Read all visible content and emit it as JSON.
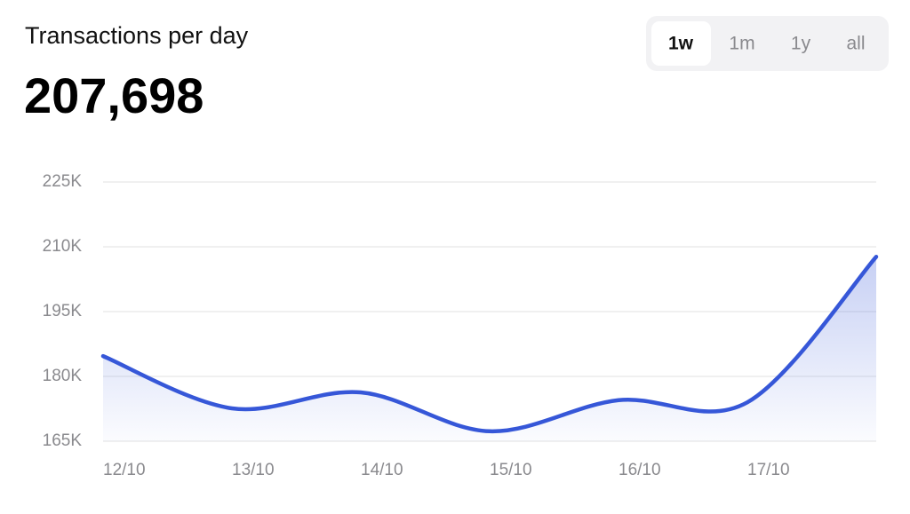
{
  "current_value": "207,698",
  "range_tabs": {
    "options": [
      "1w",
      "1m",
      "1y",
      "all"
    ],
    "active": 0
  },
  "chart_data": {
    "type": "area",
    "title": "Transactions per day",
    "categories": [
      "12/10",
      "13/10",
      "14/10",
      "15/10",
      "16/10",
      "17/10",
      null
    ],
    "values": [
      184700,
      172600,
      176300,
      167300,
      174500,
      174000,
      207698
    ],
    "color": "#3657d8",
    "ylim": [
      165000,
      225000
    ],
    "yticks": [
      {
        "value": 225000,
        "label": "225K"
      },
      {
        "value": 210000,
        "label": "210K"
      },
      {
        "value": 195000,
        "label": "195K"
      },
      {
        "value": 180000,
        "label": "180K"
      },
      {
        "value": 165000,
        "label": "165K"
      }
    ],
    "grid": true
  }
}
